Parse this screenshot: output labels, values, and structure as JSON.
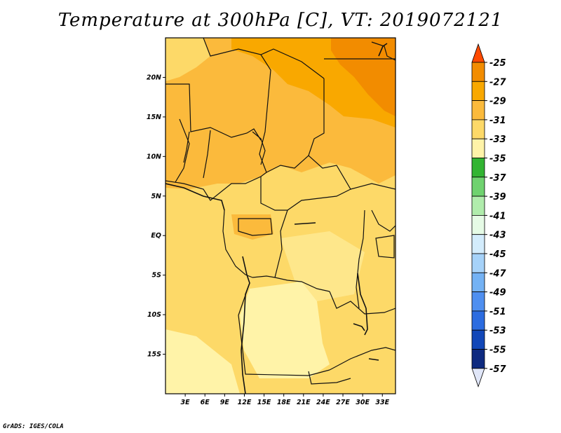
{
  "map": {
    "title": "Temperature at 300hPa [C], VT: 2019072121",
    "credit": "GrADS: IGES/COLA",
    "lat_labels": [
      {
        "label": "20N",
        "lat": 20
      },
      {
        "label": "15N",
        "lat": 15
      },
      {
        "label": "10N",
        "lat": 10
      },
      {
        "label": "5N",
        "lat": 5
      },
      {
        "label": "EQ",
        "lat": 0
      },
      {
        "label": "5S",
        "lat": -5
      },
      {
        "label": "10S",
        "lat": -10
      },
      {
        "label": "15S",
        "lat": -15
      }
    ],
    "lon_labels": [
      {
        "label": "3E",
        "lon": 3
      },
      {
        "label": "6E",
        "lon": 6
      },
      {
        "label": "9E",
        "lon": 9
      },
      {
        "label": "12E",
        "lon": 12
      },
      {
        "label": "15E",
        "lon": 15
      },
      {
        "label": "18E",
        "lon": 18
      },
      {
        "label": "21E",
        "lon": 21
      },
      {
        "label": "24E",
        "lon": 24
      },
      {
        "label": "27E",
        "lon": 27
      },
      {
        "label": "30E",
        "lon": 30
      },
      {
        "label": "33E",
        "lon": 33
      }
    ],
    "lon_range": [
      0,
      35
    ],
    "lat_range": [
      -20,
      25
    ]
  },
  "legend": {
    "levels": [
      "-25",
      "-27",
      "-29",
      "-31",
      "-33",
      "-35",
      "-37",
      "-39",
      "-41",
      "-43",
      "-45",
      "-47",
      "-49",
      "-51",
      "-53",
      "-55",
      "-57"
    ],
    "colors": [
      "#ff4a00",
      "#f28c00",
      "#f9a800",
      "#fbba3c",
      "#fdd968",
      "#fff3a8",
      "#32b432",
      "#6fd26f",
      "#b0ecac",
      "#e6fbe6",
      "#d3ecfc",
      "#a6d2f9",
      "#74b2f4",
      "#4f8ff0",
      "#2c6ce0",
      "#1247b8",
      "#0e2a80",
      "#06136a"
    ],
    "top_color": "#ff4a00",
    "bottom_color": "#e0e6f8"
  }
}
